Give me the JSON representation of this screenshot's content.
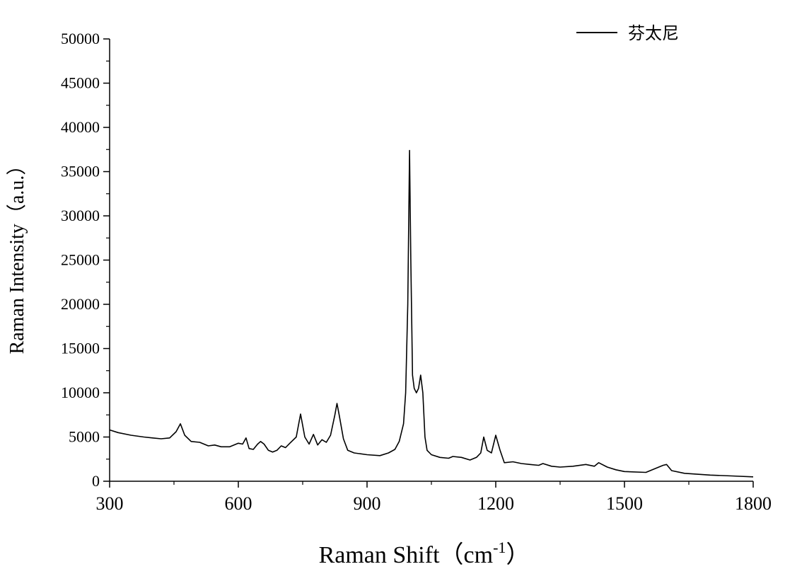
{
  "chart_data": {
    "type": "line",
    "title": "",
    "xlabel": "Raman Shift（cm",
    "xlabel_sup": "-1",
    "xlabel_tail": "）",
    "ylabel": "Raman Intensity（a.u.）",
    "xlim": [
      300,
      1800
    ],
    "ylim": [
      0,
      50000
    ],
    "x_ticks": [
      300,
      600,
      900,
      1200,
      1500,
      1800
    ],
    "y_ticks": [
      0,
      5000,
      10000,
      15000,
      20000,
      25000,
      30000,
      35000,
      40000,
      45000,
      50000
    ],
    "grid": false,
    "legend_position": "top-right",
    "colors": {
      "line": "#000000",
      "axis": "#000000"
    },
    "series": [
      {
        "name": "芬太尼",
        "x": [
          300,
          320,
          350,
          380,
          400,
          420,
          440,
          455,
          465,
          475,
          490,
          510,
          530,
          545,
          560,
          580,
          600,
          610,
          618,
          625,
          635,
          645,
          652,
          660,
          670,
          680,
          690,
          700,
          710,
          720,
          735,
          745,
          755,
          765,
          775,
          785,
          795,
          805,
          815,
          825,
          830,
          835,
          845,
          855,
          870,
          900,
          930,
          950,
          965,
          975,
          985,
          990,
          995,
          999,
          1002,
          1006,
          1010,
          1015,
          1020,
          1025,
          1030,
          1035,
          1040,
          1050,
          1070,
          1090,
          1100,
          1120,
          1140,
          1155,
          1165,
          1172,
          1180,
          1190,
          1200,
          1210,
          1220,
          1240,
          1260,
          1280,
          1300,
          1310,
          1330,
          1350,
          1380,
          1410,
          1430,
          1440,
          1460,
          1480,
          1500,
          1550,
          1580,
          1590,
          1598,
          1610,
          1640,
          1700,
          1750,
          1800
        ],
        "y": [
          5800,
          5500,
          5200,
          5000,
          4900,
          4800,
          4900,
          5600,
          6500,
          5200,
          4500,
          4400,
          4000,
          4100,
          3900,
          3900,
          4300,
          4200,
          4900,
          3700,
          3600,
          4200,
          4500,
          4200,
          3500,
          3300,
          3500,
          4000,
          3800,
          4300,
          5000,
          7600,
          5000,
          4200,
          5300,
          4100,
          4700,
          4400,
          5200,
          7500,
          8800,
          7500,
          4800,
          3500,
          3200,
          3000,
          2900,
          3200,
          3600,
          4500,
          6500,
          10000,
          20000,
          37400,
          25000,
          12000,
          10500,
          10000,
          10500,
          12000,
          10000,
          5000,
          3500,
          3000,
          2700,
          2600,
          2800,
          2700,
          2400,
          2700,
          3200,
          5000,
          3500,
          3200,
          5200,
          3500,
          2100,
          2200,
          2000,
          1900,
          1800,
          2000,
          1700,
          1600,
          1700,
          1900,
          1700,
          2100,
          1600,
          1300,
          1100,
          1000,
          1600,
          1800,
          1900,
          1200,
          900,
          700,
          600,
          500
        ]
      }
    ]
  }
}
